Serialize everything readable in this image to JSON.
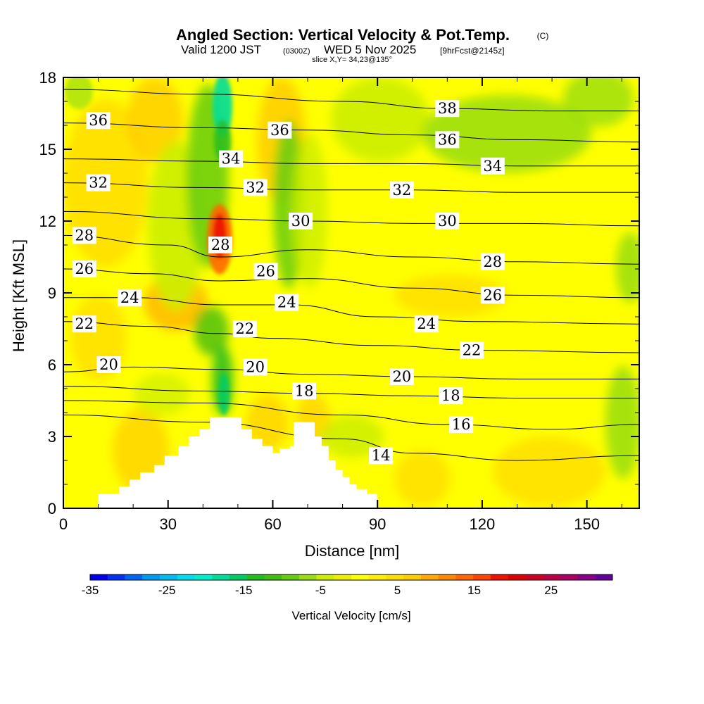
{
  "title": {
    "main": "Angled Section: Vertical Velocity & Pot.Temp.",
    "copyright": "(C)",
    "valid_prefix": "Valid 1200 JST",
    "utc": "(0300Z)",
    "date": "WED 5 Nov 2025",
    "fcst": "[9hrFcst@2145z]",
    "slice": "slice X,Y= 34,23@135°"
  },
  "chart_data": {
    "type": "heatmap",
    "xlabel": "Distance [nm]",
    "ylabel": "Height [Kft MSL]",
    "xlim": [
      0,
      165
    ],
    "ylim": [
      0,
      18
    ],
    "xticks": [
      "0",
      "30",
      "60",
      "90",
      "120",
      "150"
    ],
    "xtick_values": [
      0,
      30,
      60,
      90,
      120,
      150
    ],
    "yticks": [
      "0",
      "3",
      "6",
      "9",
      "12",
      "15",
      "18"
    ],
    "ytick_values": [
      0,
      3,
      6,
      9,
      12,
      15,
      18
    ],
    "colorbar": {
      "label": "Vertical Velocity [cm/s]",
      "ticks": [
        "-35",
        "-25",
        "-15",
        "-5",
        "5",
        "15",
        "25"
      ],
      "tick_values": [
        -35,
        -25,
        -15,
        -5,
        5,
        15,
        25
      ],
      "range": [
        -35,
        33
      ],
      "step": 2,
      "colors": [
        "#0000ee",
        "#0033f0",
        "#0066f2",
        "#0099f0",
        "#00bbee",
        "#00ddee",
        "#00eecc",
        "#00dd99",
        "#00cc66",
        "#22bb22",
        "#44bb11",
        "#66cc11",
        "#99dd11",
        "#ccee00",
        "#eeee00",
        "#ffff00",
        "#ffee00",
        "#ffdd00",
        "#ffcc00",
        "#ffaa00",
        "#ff8800",
        "#ff6600",
        "#ff4400",
        "#ee1100",
        "#dd0000",
        "#cc0022",
        "#bb0044",
        "#aa0066",
        "#880088",
        "#660099"
      ]
    },
    "isentropes": {
      "units": "K-300 (labels)",
      "lines": [
        {
          "label": "14",
          "pts": [
            [
              0,
              3.9
            ],
            [
              40,
              3.6
            ],
            [
              80,
              2.9
            ],
            [
              100,
              2.3
            ],
            [
              130,
              2.0
            ],
            [
              165,
              2.2
            ]
          ],
          "lx": 91,
          "ly": 2.2
        },
        {
          "label": "16",
          "pts": [
            [
              0,
              4.5
            ],
            [
              40,
              4.4
            ],
            [
              80,
              3.9
            ],
            [
              110,
              3.5
            ],
            [
              140,
              3.3
            ],
            [
              165,
              3.5
            ]
          ],
          "lx": 114,
          "ly": 3.5
        },
        {
          "label": "18",
          "pts": [
            [
              0,
              5.1
            ],
            [
              40,
              4.9
            ],
            [
              70,
              4.8
            ],
            [
              100,
              4.7
            ],
            [
              130,
              4.6
            ],
            [
              165,
              4.6
            ]
          ],
          "lx": 111,
          "ly": 4.7
        },
        {
          "label": "20",
          "pts": [
            [
              0,
              5.7
            ],
            [
              20,
              5.9
            ],
            [
              45,
              5.8
            ],
            [
              70,
              5.6
            ],
            [
              100,
              5.5
            ],
            [
              130,
              5.4
            ],
            [
              165,
              5.4
            ]
          ],
          "lx": 97,
          "ly": 5.5
        },
        {
          "label": "22",
          "pts": [
            [
              0,
              7.8
            ],
            [
              25,
              7.6
            ],
            [
              45,
              7.3
            ],
            [
              60,
              7.1
            ],
            [
              90,
              6.8
            ],
            [
              120,
              6.6
            ],
            [
              165,
              6.5
            ]
          ],
          "lx": 117,
          "ly": 6.6
        },
        {
          "label": "24",
          "pts": [
            [
              0,
              8.8
            ],
            [
              20,
              8.8
            ],
            [
              45,
              8.5
            ],
            [
              65,
              8.5
            ],
            [
              90,
              8.0
            ],
            [
              120,
              7.8
            ],
            [
              165,
              7.7
            ]
          ],
          "lx": 104,
          "ly": 7.7
        },
        {
          "label": "26",
          "pts": [
            [
              0,
              10.0
            ],
            [
              25,
              9.8
            ],
            [
              45,
              9.5
            ],
            [
              70,
              9.6
            ],
            [
              100,
              9.2
            ],
            [
              130,
              8.9
            ],
            [
              165,
              8.8
            ]
          ],
          "lx": 123,
          "ly": 8.9
        },
        {
          "label": "28",
          "pts": [
            [
              0,
              11.4
            ],
            [
              30,
              11.0
            ],
            [
              45,
              10.5
            ],
            [
              70,
              10.8
            ],
            [
              100,
              10.5
            ],
            [
              130,
              10.3
            ],
            [
              165,
              10.2
            ]
          ],
          "lx": 123,
          "ly": 10.3
        },
        {
          "label": "30",
          "pts": [
            [
              0,
              12.4
            ],
            [
              40,
              12.1
            ],
            [
              70,
              12.0
            ],
            [
              100,
              11.9
            ],
            [
              130,
              11.9
            ],
            [
              165,
              11.8
            ]
          ],
          "lx": 110,
          "ly": 12.0
        },
        {
          "label": "32",
          "pts": [
            [
              0,
              13.6
            ],
            [
              40,
              13.4
            ],
            [
              70,
              13.3
            ],
            [
              100,
              13.3
            ],
            [
              130,
              13.2
            ],
            [
              165,
              13.2
            ]
          ],
          "lx": 97,
          "ly": 13.3
        },
        {
          "label": "34",
          "pts": [
            [
              0,
              14.6
            ],
            [
              40,
              14.5
            ],
            [
              70,
              14.4
            ],
            [
              100,
              14.4
            ],
            [
              130,
              14.3
            ],
            [
              165,
              14.3
            ]
          ],
          "lx": 123,
          "ly": 14.3
        },
        {
          "label": "36",
          "pts": [
            [
              0,
              16.1
            ],
            [
              40,
              15.9
            ],
            [
              70,
              15.8
            ],
            [
              100,
              15.6
            ],
            [
              130,
              15.4
            ],
            [
              165,
              15.3
            ]
          ],
          "lx": 110,
          "ly": 15.4
        },
        {
          "label": "38",
          "pts": [
            [
              0,
              17.5
            ],
            [
              40,
              17.3
            ],
            [
              80,
              17.0
            ],
            [
              110,
              16.7
            ],
            [
              140,
              16.6
            ],
            [
              165,
              16.6
            ]
          ],
          "lx": 110,
          "ly": 16.7
        }
      ],
      "labels_left": [
        {
          "label": "36",
          "x": 10,
          "y": 16.2
        },
        {
          "label": "32",
          "x": 10,
          "y": 13.6
        },
        {
          "label": "28",
          "x": 6,
          "y": 11.4
        },
        {
          "label": "26",
          "x": 6,
          "y": 10.0
        },
        {
          "label": "24",
          "x": 19,
          "y": 8.8
        },
        {
          "label": "22",
          "x": 6,
          "y": 7.7
        },
        {
          "label": "20",
          "x": 13,
          "y": 6.0
        },
        {
          "label": "36",
          "x": 62,
          "y": 15.8
        },
        {
          "label": "34",
          "x": 48,
          "y": 14.6
        },
        {
          "label": "32",
          "x": 55,
          "y": 13.4
        },
        {
          "label": "30",
          "x": 68,
          "y": 12.0
        },
        {
          "label": "28",
          "x": 45,
          "y": 11.0
        },
        {
          "label": "26",
          "x": 58,
          "y": 9.9
        },
        {
          "label": "24",
          "x": 64,
          "y": 8.6
        },
        {
          "label": "22",
          "x": 52,
          "y": 7.5
        },
        {
          "label": "20",
          "x": 55,
          "y": 5.9
        },
        {
          "label": "18",
          "x": 69,
          "y": 4.9
        }
      ]
    },
    "terrain": [
      [
        10,
        0.6
      ],
      [
        16,
        0.9
      ],
      [
        19,
        1.2
      ],
      [
        22,
        1.5
      ],
      [
        26,
        1.8
      ],
      [
        29,
        2.2
      ],
      [
        33,
        2.6
      ],
      [
        36,
        3.0
      ],
      [
        39,
        3.3
      ],
      [
        42,
        3.8
      ],
      [
        49,
        3.8
      ],
      [
        51,
        3.3
      ],
      [
        54,
        2.9
      ],
      [
        57,
        2.6
      ],
      [
        60,
        2.3
      ],
      [
        62,
        2.5
      ],
      [
        65,
        2.6
      ],
      [
        66,
        3.6
      ],
      [
        71,
        3.6
      ],
      [
        72,
        3.0
      ],
      [
        74,
        2.6
      ],
      [
        76,
        2.0
      ],
      [
        78,
        1.6
      ],
      [
        80,
        1.3
      ],
      [
        82,
        1.0
      ],
      [
        84,
        0.8
      ],
      [
        87,
        0.6
      ],
      [
        90,
        0.6
      ]
    ]
  }
}
